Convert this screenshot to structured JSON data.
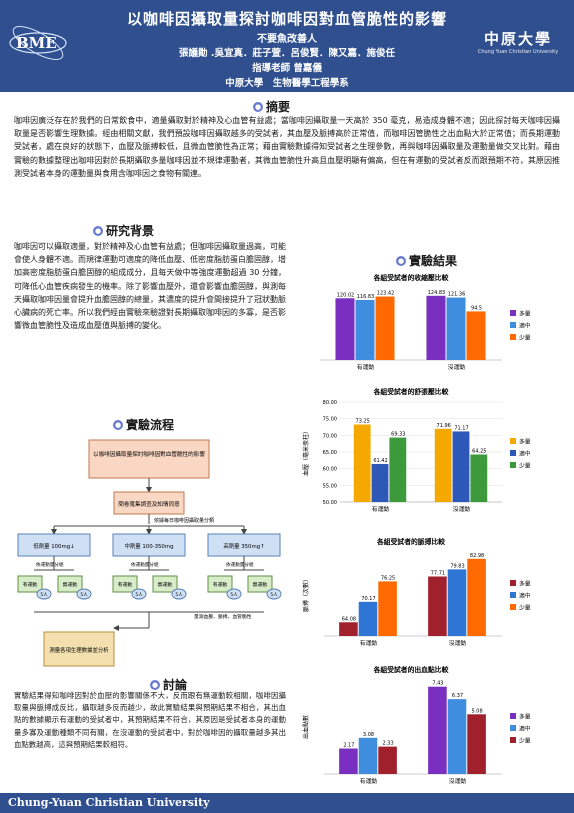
{
  "header": {
    "title": "以咖啡因攝取量探討咖啡因對血管脆性的影響",
    "subtitle": "不要魚改善人",
    "authors": "張議勛 .吳宜真．莊子萱．呂俊賢．陳又嘉．施俊任",
    "advisor": "指導老師 曾嘉儀",
    "dept": "中原大學　生物醫學工程學系",
    "logo_left": "BME",
    "logo_right_cn": "中原大學",
    "logo_right_en": "Chung Yuan Christian University"
  },
  "abstract": {
    "heading": "摘要",
    "text": "咖啡因廣泛存在於我們的日常飲食中，適量攝取對於精神及心血管有益處；當咖啡因攝取量一天高於 350 毫克，易造成身體不適；因此探討每天咖啡因攝取量是否影響生理數據。經由相關文獻，我們預設咖啡因攝取越多的受試者，其血壓及脈搏高於正常值，而咖啡因管脆性之出血點大於正常值；而長期運動受試者，處在良好的狀態下，血壓及脈搏較低，且微血管脆性為正常；藉由實驗數據得知受試者之生理參數，再與咖啡因攝取量及運動量做交叉比對。藉由實驗的數據整理出咖啡因對於長期攝取多量咖啡因並不規律運動者，其微血管脆性升高且血壓明顯有偏高，但在有運動的受試者反而跟預期不符，其原因推測受試者本身的運動量與食用含咖啡因之食物有關連。"
  },
  "background": {
    "heading": "研究背景",
    "text": "咖啡因可以攝取適量，對於精神及心血管有益處；但咖啡因攝取量過高，可能會使人身體不適。而規律運動可適度的降低血壓、低密度脂肪蛋白膽固醇，增加高密度脂肪蛋白膽固醇的組成成分，且每天做中等強度運動超過 30 分鐘，可降低心血管疾病發生的機率。除了影響血壓外，還會影響血膽固醇，與測每天攝取咖啡因量會提升血膽固醇的總量，其濃度的提升會間接提升了冠狀動脈心臟病的死亡率。所以我們經由實驗來驗證對長期攝取咖啡因的多寡，是否影響微血管脆性及造成血壓值與脈搏的變化。"
  },
  "flow": {
    "heading": "實驗流程",
    "top_box": "以咖啡因攝取量探討咖啡因對血管脆性的影響",
    "second_box": "問卷蒐集調查及知情同意",
    "group_label": "依據每日咖啡因攝取量分類",
    "groups": [
      "低劑量 100mg↓",
      "中劑量 100-350mg",
      "高劑量 350mg↑"
    ],
    "sub_labels": [
      "依運動量分組",
      "依運動量分組",
      "依運動量分組"
    ],
    "leaf_a": "有運動",
    "leaf_b": "無運動",
    "counts": [
      "5人",
      "5人",
      "5人",
      "5人",
      "5人",
      "5人"
    ],
    "measure_label": "量測血壓、脈搏、血管脆性",
    "final_box": "測量各項生理數據並分析"
  },
  "conclusion": {
    "heading": "討論",
    "text": "實驗結果得知咖啡因對於血壓的影響關係不大，反而跟有無運動較相關，咖啡因攝取量與脈搏成反比，攝取越多反而越少，故此實驗結果與預期結果不相合，其出血點的數據顯示有運動的受試者中，其預期結果不符合，其原因是受試者本身的運動量多寡及運動種類不同有關，在沒運動的受試者中，對於咖啡因的攝取量越多其出血點數越高，這與預期結果較相符。"
  },
  "results": {
    "heading": "實驗結果",
    "legend": [
      "多量",
      "適中",
      "少量"
    ],
    "legend_colors": [
      "#1f4e9a",
      "#2f75d6",
      "#ff6a00"
    ]
  },
  "chart_data": [
    {
      "type": "bar",
      "title": "各組受試者的收縮壓比較",
      "categories": [
        "有運動",
        "沒運動"
      ],
      "series": [
        {
          "name": "多量",
          "values": [
            120.02,
            124.83
          ],
          "color": "#7a2fc0"
        },
        {
          "name": "適中",
          "values": [
            116.83,
            121.36
          ],
          "color": "#3f8ddf"
        },
        {
          "name": "少量",
          "values": [
            123.42,
            94.5
          ],
          "color": "#ff6a00"
        }
      ],
      "ylim": [
        0,
        140
      ]
    },
    {
      "type": "bar",
      "title": "各組受試者的舒張壓比較",
      "categories": [
        "有運動",
        "沒運動"
      ],
      "series": [
        {
          "name": "多量",
          "values": [
            73.25,
            71.96
          ],
          "color": "#f5a800"
        },
        {
          "name": "適中",
          "values": [
            61.42,
            71.17
          ],
          "color": "#2e58b8"
        },
        {
          "name": "少量",
          "values": [
            69.33,
            64.25
          ],
          "color": "#3c9a3c"
        }
      ],
      "ylim": [
        50,
        80
      ],
      "ylabel": "血壓（毫米汞柱）",
      "yticks": [
        50,
        55,
        60,
        65,
        70,
        75,
        80
      ]
    },
    {
      "type": "bar",
      "title": "各組受試者的脈搏比較",
      "categories": [
        "有運動",
        "沒運動"
      ],
      "series": [
        {
          "name": "多量",
          "values": [
            64.08,
            77.71
          ],
          "color": "#a0202c"
        },
        {
          "name": "適中",
          "values": [
            70.17,
            79.83
          ],
          "color": "#2f75d6"
        },
        {
          "name": "少量",
          "values": [
            76.25,
            82.98
          ],
          "color": "#ff6a00"
        }
      ],
      "ylim": [
        60,
        85
      ],
      "ylabel": "脈搏（次數）"
    },
    {
      "type": "bar",
      "title": "各組受試者的出血點比較",
      "categories": [
        "有運動",
        "沒運動"
      ],
      "series": [
        {
          "name": "多量",
          "values": [
            2.17,
            7.43
          ],
          "color": "#7a2fc0"
        },
        {
          "name": "適中",
          "values": [
            3.08,
            6.37
          ],
          "color": "#3f8ddf"
        },
        {
          "name": "少量",
          "values": [
            2.33,
            5.08
          ],
          "color": "#a0202c"
        }
      ],
      "ylim": [
        0,
        8
      ],
      "ylabel": "出血點數"
    }
  ],
  "footer": {
    "text": "Chung-Yuan Christian University"
  }
}
